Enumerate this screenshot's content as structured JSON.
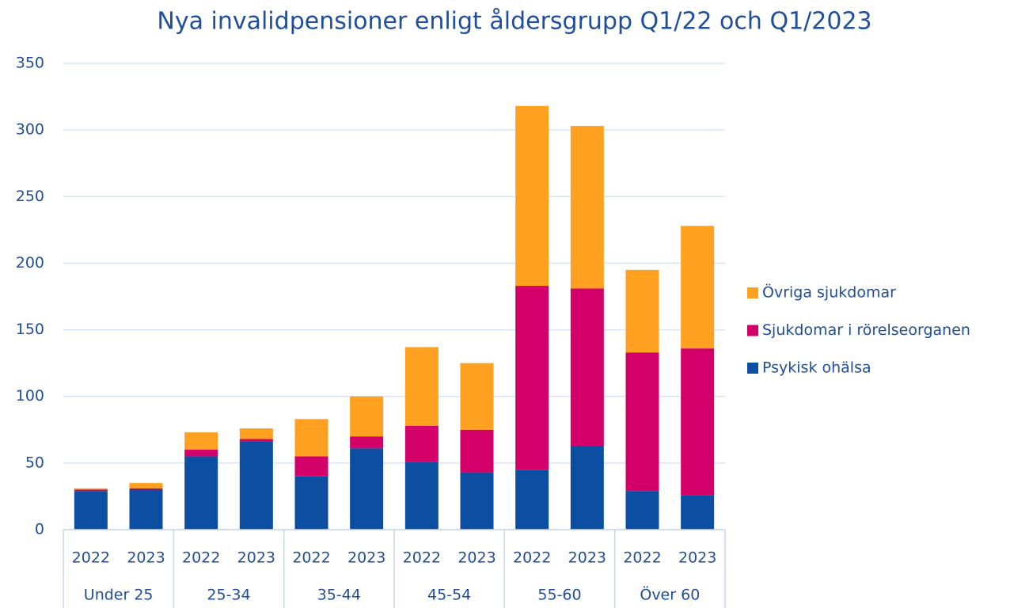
{
  "chart_data": {
    "type": "stacked_bar",
    "title": "Nya invalidpensioner enligt åldersgrupp Q1/22 och Q1/2023",
    "categories": [
      "2022",
      "2023",
      "2022",
      "2023",
      "2022",
      "2023",
      "2022",
      "2023",
      "2022",
      "2023",
      "2022",
      "2023"
    ],
    "groups": [
      "Under 25",
      "25-34",
      "35-44",
      "45-54",
      "55-60",
      "Över 60"
    ],
    "series": [
      {
        "name": "Psykisk ohälsa",
        "color": "#0b4ea2",
        "values": [
          29,
          30,
          55,
          66,
          40,
          61,
          51,
          43,
          45,
          63,
          29,
          26
        ]
      },
      {
        "name": "Sjukdomar i rörelseorganen",
        "color": "#d4006a",
        "values": [
          1,
          1,
          5,
          2,
          15,
          9,
          27,
          32,
          138,
          118,
          104,
          110
        ]
      },
      {
        "name": "Övriga sjukdomar",
        "color": "#ffa020",
        "values": [
          1,
          4,
          13,
          8,
          28,
          30,
          59,
          50,
          135,
          122,
          62,
          92
        ]
      }
    ],
    "ylim": [
      0,
      350
    ],
    "yticks": [
      0,
      50,
      100,
      150,
      200,
      250,
      300,
      350
    ],
    "grid": true,
    "legend": "right"
  }
}
